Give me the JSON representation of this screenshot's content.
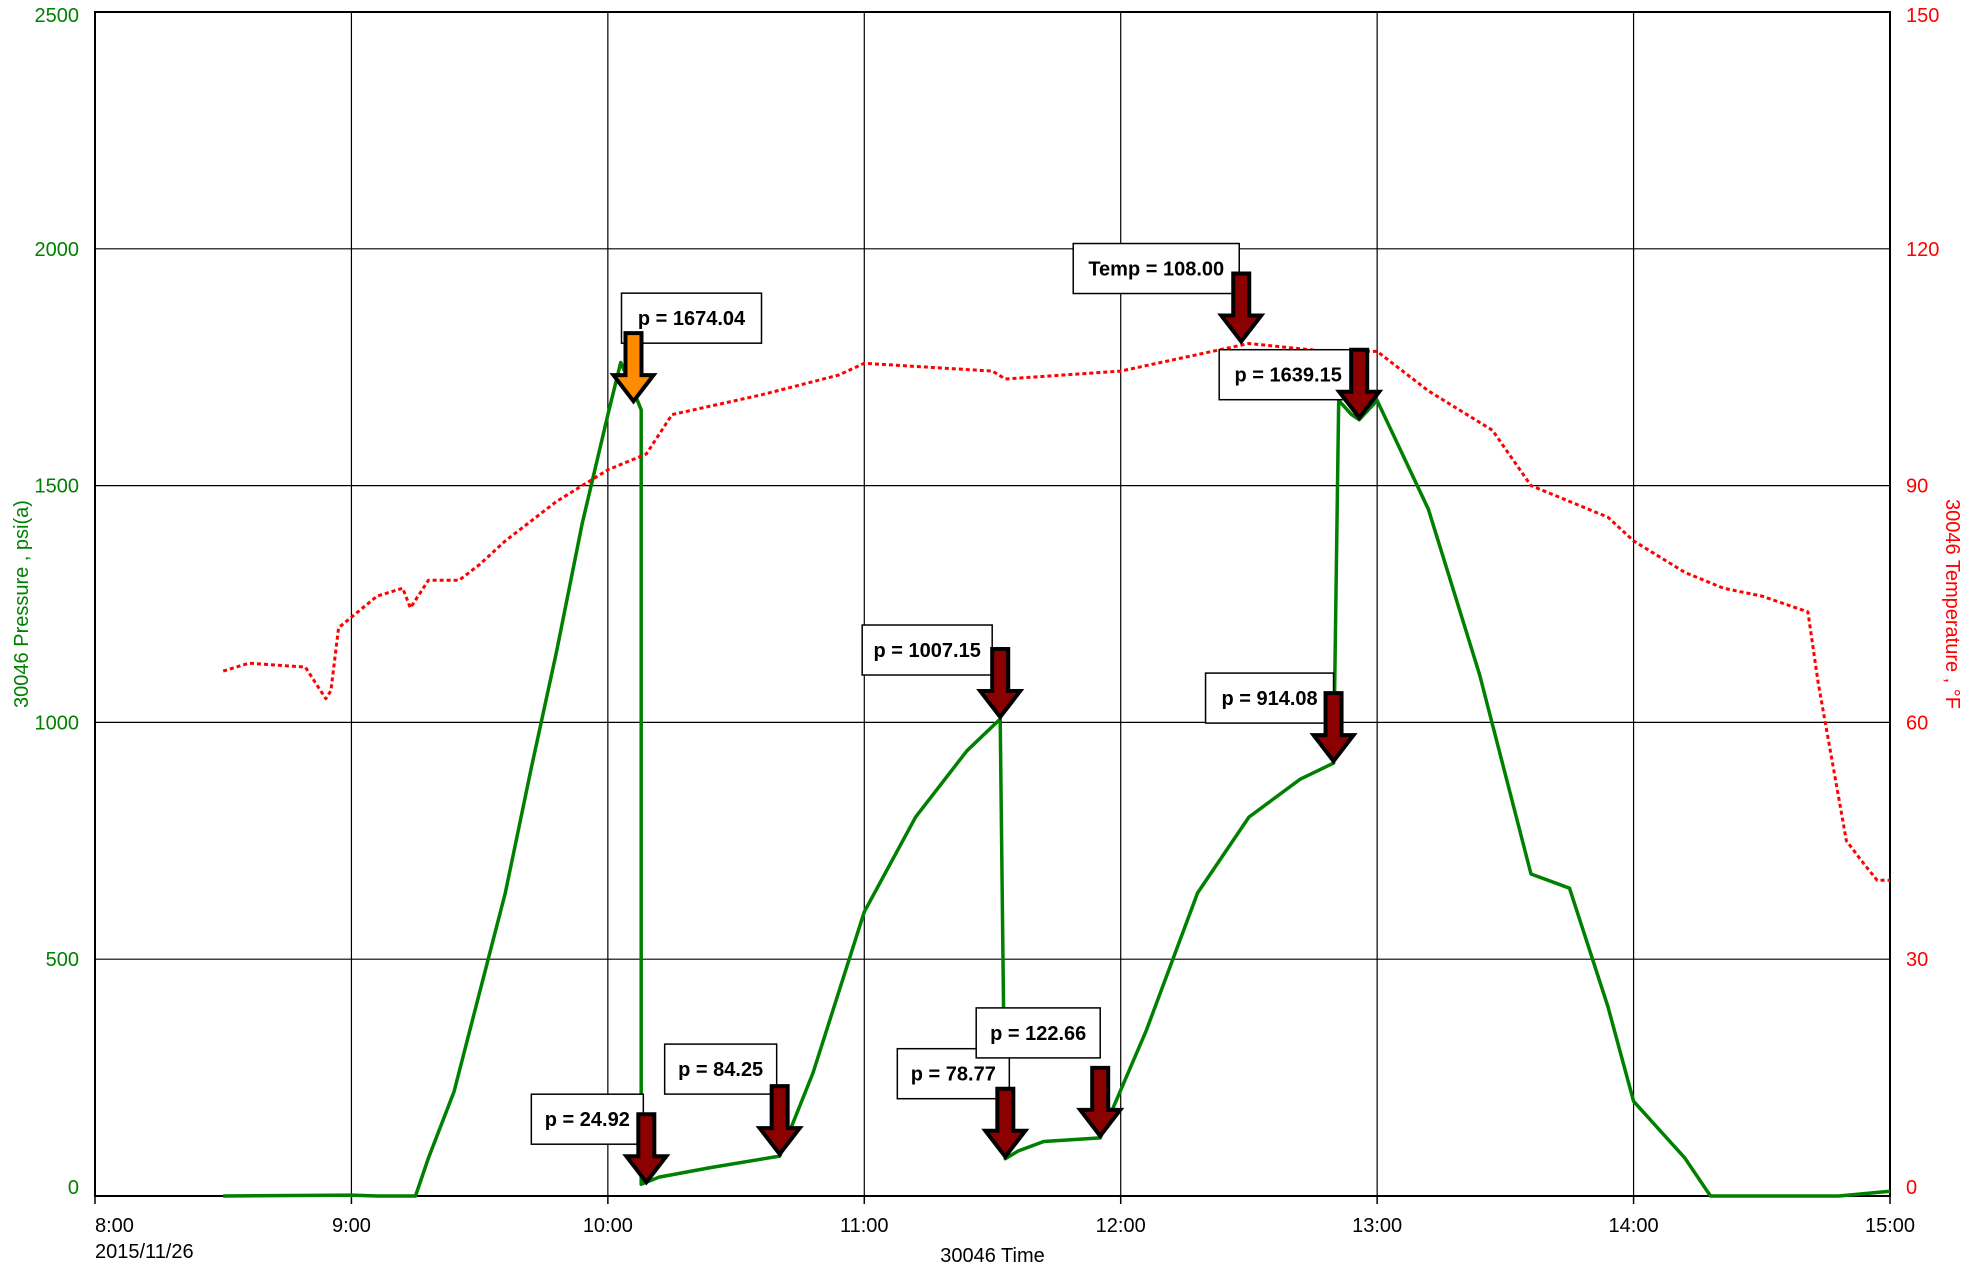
{
  "chart_data": {
    "type": "line",
    "x_start_label": "2015/11/26",
    "xlabel": "30046 Time",
    "ylabel_left": "30046 Pressure , psi(a)",
    "ylabel_right": "30046 Temperature , °F",
    "x_ticks": [
      "8:00",
      "9:00",
      "10:00",
      "11:00",
      "12:00",
      "13:00",
      "14:00",
      "15:00"
    ],
    "y_left_ticks": [
      "0",
      "500",
      "1000",
      "1500",
      "2000",
      "2500"
    ],
    "y_right_ticks": [
      "0",
      "30",
      "60",
      "90",
      "120",
      "150"
    ],
    "xlim": [
      8.0,
      15.0
    ],
    "ylim_left": [
      0,
      2500
    ],
    "ylim_right": [
      0,
      150
    ],
    "grid": true,
    "colors": {
      "pressure": "#008000",
      "temperature": "#ff0000",
      "arrow_red": "#8b0000",
      "arrow_orange": "#ff8c00"
    },
    "series": [
      {
        "name": "30046 Pressure",
        "axis": "left",
        "style": "solid",
        "points": [
          [
            8.5,
            0
          ],
          [
            9.0,
            2
          ],
          [
            9.1,
            0
          ],
          [
            9.25,
            0
          ],
          [
            9.3,
            80
          ],
          [
            9.4,
            220
          ],
          [
            9.5,
            430
          ],
          [
            9.6,
            640
          ],
          [
            9.7,
            900
          ],
          [
            9.8,
            1150
          ],
          [
            9.9,
            1420
          ],
          [
            10.0,
            1650
          ],
          [
            10.05,
            1760
          ],
          [
            10.1,
            1700
          ],
          [
            10.13,
            1660
          ],
          [
            10.13,
            24.92
          ],
          [
            10.2,
            40
          ],
          [
            10.4,
            60
          ],
          [
            10.67,
            84.25
          ],
          [
            10.8,
            260
          ],
          [
            11.0,
            600
          ],
          [
            11.2,
            800
          ],
          [
            11.4,
            940
          ],
          [
            11.53,
            1007.15
          ],
          [
            11.55,
            78.77
          ],
          [
            11.6,
            95
          ],
          [
            11.7,
            115
          ],
          [
            11.92,
            122.66
          ],
          [
            12.1,
            350
          ],
          [
            12.3,
            640
          ],
          [
            12.5,
            800
          ],
          [
            12.7,
            880
          ],
          [
            12.83,
            914.08
          ],
          [
            12.85,
            1680
          ],
          [
            12.9,
            1650
          ],
          [
            12.93,
            1639.15
          ],
          [
            13.0,
            1680
          ],
          [
            13.2,
            1450
          ],
          [
            13.4,
            1100
          ],
          [
            13.6,
            680
          ],
          [
            13.75,
            650
          ],
          [
            13.9,
            400
          ],
          [
            14.0,
            200
          ],
          [
            14.2,
            80
          ],
          [
            14.3,
            0
          ],
          [
            14.8,
            0
          ],
          [
            15.0,
            10
          ]
        ]
      },
      {
        "name": "30046 Temperature",
        "axis": "right",
        "style": "dotted",
        "points": [
          [
            8.5,
            66.5
          ],
          [
            8.6,
            67.5
          ],
          [
            8.82,
            67
          ],
          [
            8.9,
            63
          ],
          [
            8.92,
            64
          ],
          [
            8.95,
            72
          ],
          [
            9.1,
            76
          ],
          [
            9.2,
            77
          ],
          [
            9.23,
            74.5
          ],
          [
            9.3,
            78
          ],
          [
            9.42,
            78
          ],
          [
            9.5,
            80
          ],
          [
            9.6,
            83
          ],
          [
            9.8,
            88
          ],
          [
            10.0,
            92
          ],
          [
            10.15,
            94
          ],
          [
            10.25,
            99
          ],
          [
            10.6,
            101.5
          ],
          [
            10.9,
            104
          ],
          [
            11.0,
            105.5
          ],
          [
            11.5,
            104.5
          ],
          [
            11.55,
            103.5
          ],
          [
            12.0,
            104.5
          ],
          [
            12.5,
            108
          ],
          [
            12.8,
            107
          ],
          [
            13.0,
            107
          ],
          [
            13.2,
            102
          ],
          [
            13.45,
            97
          ],
          [
            13.6,
            90
          ],
          [
            13.9,
            86
          ],
          [
            14.0,
            83
          ],
          [
            14.2,
            79
          ],
          [
            14.35,
            77
          ],
          [
            14.5,
            76
          ],
          [
            14.68,
            74
          ],
          [
            14.72,
            65
          ],
          [
            14.83,
            45
          ],
          [
            14.9,
            42
          ],
          [
            14.95,
            40
          ],
          [
            15.0,
            40
          ]
        ]
      }
    ],
    "annotations": [
      {
        "label": "p = 1674.04",
        "x": 10.1,
        "y": 1674.04,
        "arrow": "orange"
      },
      {
        "label": "Temp = 108.00",
        "x": 12.47,
        "y": 1800,
        "arrow": "red"
      },
      {
        "label": "p = 1639.15",
        "x": 12.93,
        "y": 1639.15,
        "arrow": "red"
      },
      {
        "label": "p = 1007.15",
        "x": 11.53,
        "y": 1007.15,
        "arrow": "red"
      },
      {
        "label": "p = 914.08",
        "x": 12.83,
        "y": 914.08,
        "arrow": "red"
      },
      {
        "label": "p = 24.92",
        "x": 10.15,
        "y": 24.92,
        "arrow": "red"
      },
      {
        "label": "p = 84.25",
        "x": 10.67,
        "y": 84.25,
        "arrow": "red"
      },
      {
        "label": "p = 78.77",
        "x": 11.55,
        "y": 78.77,
        "arrow": "red"
      },
      {
        "label": "p = 122.66",
        "x": 11.92,
        "y": 122.66,
        "arrow": "red"
      }
    ]
  }
}
